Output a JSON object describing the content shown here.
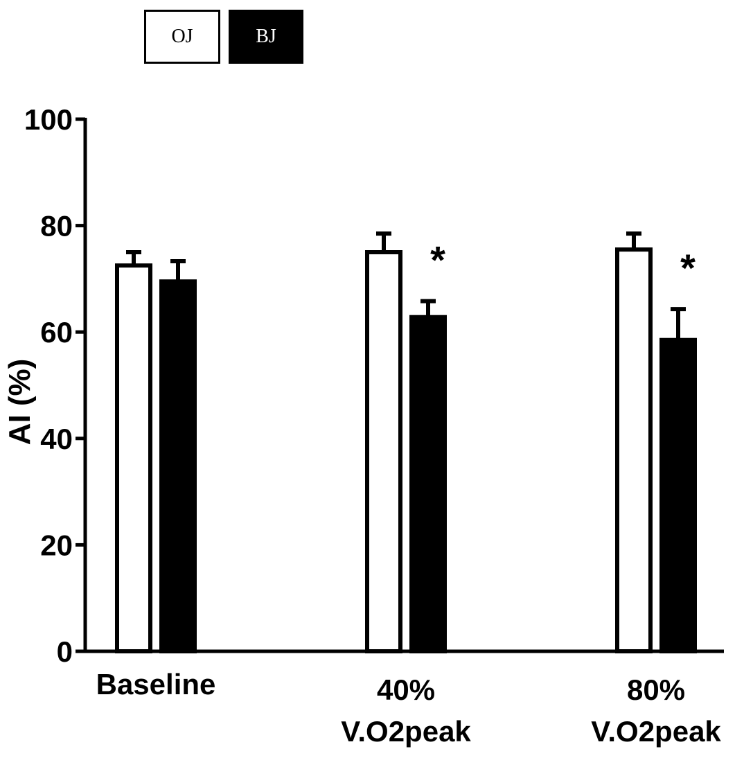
{
  "legend": {
    "oj_label": "OJ",
    "bj_label": "BJ"
  },
  "chart_data": {
    "type": "bar",
    "title": "",
    "ylabel": "AI (%)",
    "xlabel": "",
    "ylim": [
      0,
      100
    ],
    "yticks": [
      "0",
      "20",
      "40",
      "60",
      "80",
      "100"
    ],
    "categories": [
      {
        "line1": "Baseline",
        "line2": ""
      },
      {
        "line1": "40%",
        "line2": "V.O2peak"
      },
      {
        "line1": "80%",
        "line2": "V.O2peak"
      }
    ],
    "series": [
      {
        "name": "OJ",
        "fill": "#ffffff",
        "values": [
          72.5,
          75,
          75.5
        ],
        "errors": [
          2.5,
          3.5,
          3
        ]
      },
      {
        "name": "BJ",
        "fill": "#000000",
        "values": [
          69.5,
          62.8,
          58.5
        ],
        "errors": [
          3.8,
          3.0,
          5.8
        ]
      }
    ],
    "annotations": [
      {
        "category_index": 1,
        "series_index": 1,
        "text": "*"
      },
      {
        "category_index": 2,
        "series_index": 1,
        "text": "*"
      }
    ],
    "grid": false,
    "legend_position": "top-left"
  }
}
